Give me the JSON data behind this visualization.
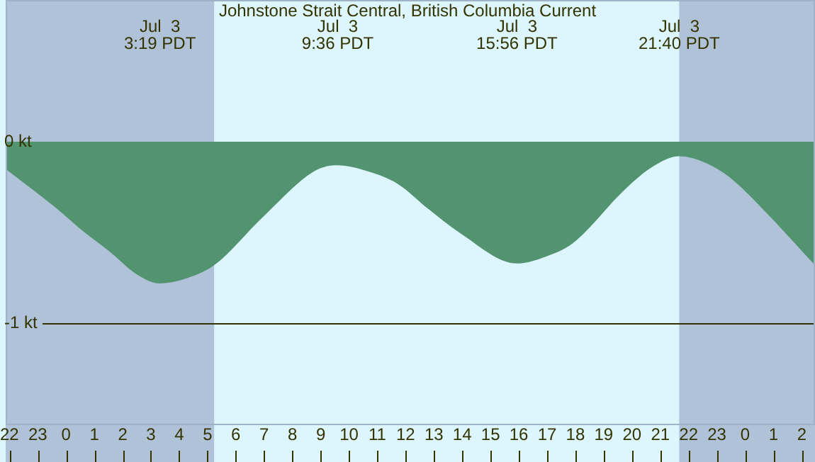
{
  "chart_data": {
    "type": "area",
    "title": "Johnstone Strait Central, British Columbia Current",
    "x": [
      "--07-02T21:52",
      "--07-02T23:41",
      "--07-03T00:30",
      "--07-03T01:30",
      "--07-03T02:30",
      "--07-03T03:19",
      "--07-03T04:18",
      "--07-03T05:14",
      "--07-03T06:59",
      "--07-03T08:48",
      "--07-03T09:36",
      "--07-03T10:36",
      "--07-03T11:42",
      "--07-03T12:48",
      "--07-03T13:54",
      "--07-03T15:56",
      "--07-03T17:00",
      "--07-03T17:54",
      "--07-03T19:46",
      "--07-03T20:42",
      "--07-03T21:40",
      "--07-03T22:30",
      "--07-03T23:24",
      "--07-04T00:52",
      "--07-04T01:42",
      "--07-04T02:28"
    ],
    "series": [
      {
        "color": "#52946f",
        "values": [
          -0.15,
          -0.37,
          -0.48,
          -0.6,
          -0.73,
          -0.78,
          -0.75,
          -0.68,
          -0.41,
          -0.16,
          -0.13,
          -0.16,
          -0.23,
          -0.37,
          -0.5,
          -0.67,
          -0.63,
          -0.56,
          -0.26,
          -0.14,
          -0.08,
          -0.11,
          -0.19,
          -0.41,
          -0.55,
          -0.68
        ]
      }
    ],
    "xlim": [
      "--07-02T21:52",
      "--07-04T02:28"
    ],
    "xticks": [
      {
        "value": "--07-02T22:00",
        "label": "22"
      },
      {
        "value": "--07-02T23:00",
        "label": "23"
      },
      {
        "value": "--07-03T00:00",
        "label": "0"
      },
      {
        "value": "--07-03T01:00",
        "label": "1"
      },
      {
        "value": "--07-03T02:00",
        "label": "2"
      },
      {
        "value": "--07-03T03:00",
        "label": "3"
      },
      {
        "value": "--07-03T04:00",
        "label": "4"
      },
      {
        "value": "--07-03T05:00",
        "label": "5"
      },
      {
        "value": "--07-03T06:00",
        "label": "6"
      },
      {
        "value": "--07-03T07:00",
        "label": "7"
      },
      {
        "value": "--07-03T08:00",
        "label": "8"
      },
      {
        "value": "--07-03T09:00",
        "label": "9"
      },
      {
        "value": "--07-03T10:00",
        "label": "10"
      },
      {
        "value": "--07-03T11:00",
        "label": "11"
      },
      {
        "value": "--07-03T12:00",
        "label": "12"
      },
      {
        "value": "--07-03T13:00",
        "label": "13"
      },
      {
        "value": "--07-03T14:00",
        "label": "14"
      },
      {
        "value": "--07-03T15:00",
        "label": "15"
      },
      {
        "value": "--07-03T16:00",
        "label": "16"
      },
      {
        "value": "--07-03T17:00",
        "label": "17"
      },
      {
        "value": "--07-03T18:00",
        "label": "18"
      },
      {
        "value": "--07-03T19:00",
        "label": "19"
      },
      {
        "value": "--07-03T20:00",
        "label": "20"
      },
      {
        "value": "--07-03T21:00",
        "label": "21"
      },
      {
        "value": "--07-03T22:00",
        "label": "22"
      },
      {
        "value": "--07-03T23:00",
        "label": "23"
      },
      {
        "value": "--07-04T00:00",
        "label": "0"
      },
      {
        "value": "--07-04T01:00",
        "label": "1"
      },
      {
        "value": "--07-04T02:00",
        "label": "2"
      }
    ],
    "ylim": [
      -1.56,
      0.78
    ],
    "yticks": [
      {
        "value": 0,
        "label": "0 kt"
      },
      {
        "value": -1,
        "label": "-1 kt"
      }
    ],
    "ref_lines": [
      {
        "axis": "y",
        "value": -1,
        "color": "#333300"
      }
    ],
    "bands": [
      {
        "axis": "x",
        "from": "--07-02T21:52",
        "to": "--07-03T05:14",
        "color": "#b0c2d8"
      },
      {
        "axis": "x",
        "from": "--07-03T21:40",
        "to": "--07-04T02:28",
        "color": "#b0c2d8"
      }
    ],
    "annotations": [
      "Jul  3\n3:19 PDT",
      "Jul  3\n9:36 PDT",
      "Jul  3\n15:56 PDT",
      "Jul  3\n21:40 PDT"
    ]
  }
}
